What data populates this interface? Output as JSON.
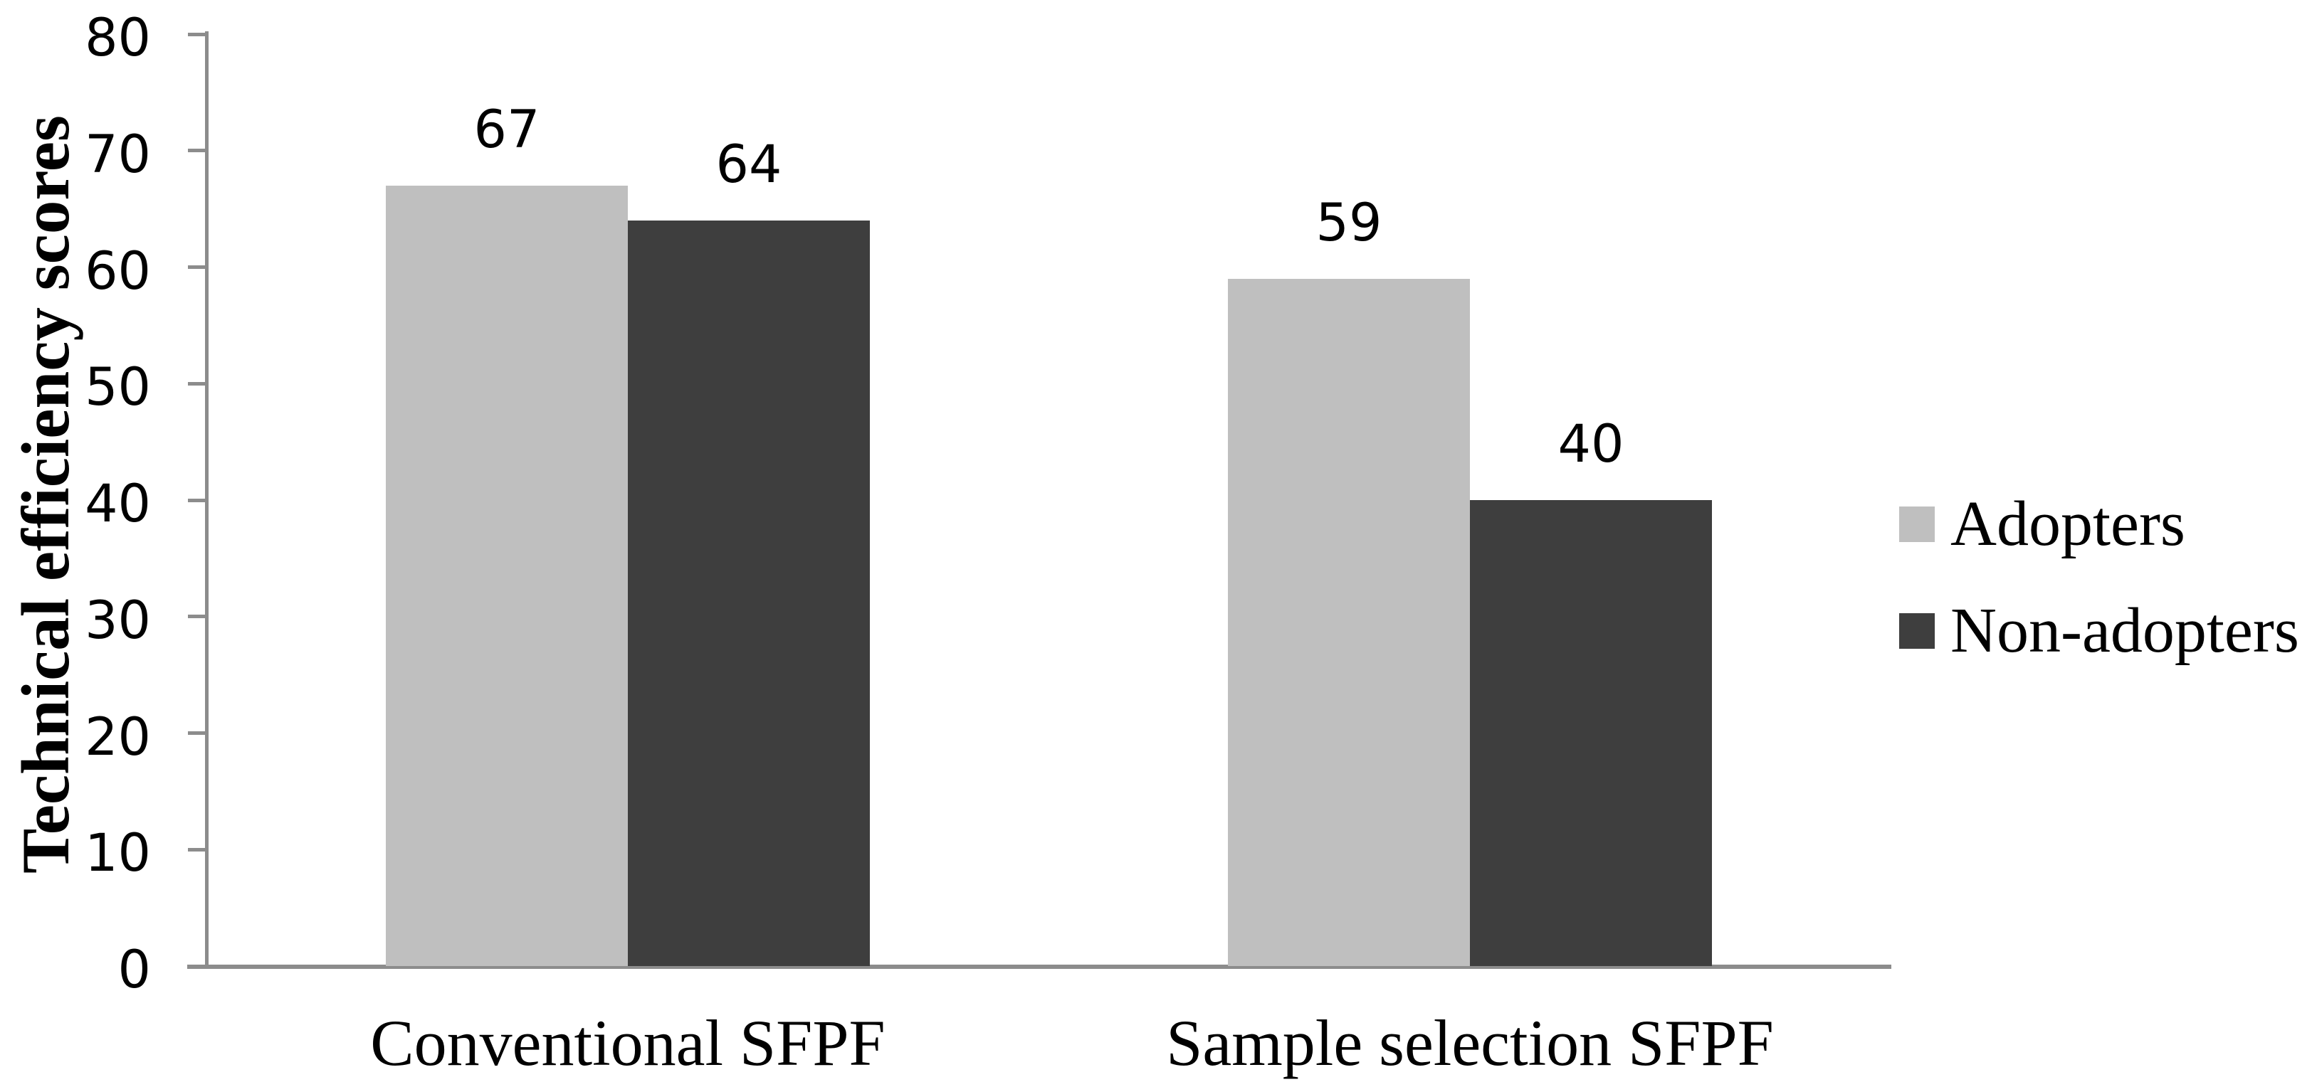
{
  "chart_data": {
    "type": "bar",
    "title": "",
    "categories": [
      "Conventional SFPF",
      "Sample selection SFPF"
    ],
    "series": [
      {
        "name": "Adopters",
        "color": "#BFBFBF",
        "values": [
          67,
          59
        ]
      },
      {
        "name": "Non-adopters",
        "color": "#3E3E3E",
        "values": [
          64,
          40
        ]
      }
    ],
    "bar_value_labels": [
      [
        67,
        64
      ],
      [
        59,
        40
      ]
    ],
    "xlabel": "",
    "ylabel": "Technical efficiency scores",
    "ylim": [
      0,
      80
    ],
    "yticks": [
      0,
      10,
      20,
      30,
      40,
      50,
      60,
      70,
      80
    ],
    "grid": false,
    "legend_position": "right",
    "axis_color": "#8C8C8C",
    "text_color": "#000000",
    "background_color": "#FFFFFF"
  }
}
